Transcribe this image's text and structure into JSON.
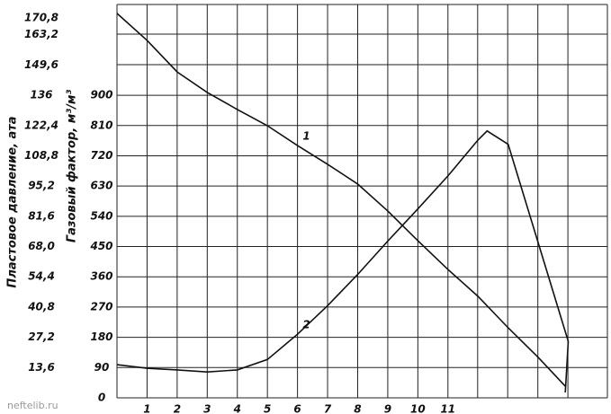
{
  "chart_data": {
    "type": "line",
    "ylabel": "Пластовое давление, ата",
    "y2label": "Газовый фактор, м³/м³",
    "watermark": "neftelib.ru",
    "xlim": [
      0,
      16.3
    ],
    "xticks": [
      1,
      2,
      3,
      4,
      5,
      6,
      7,
      8,
      9,
      10,
      11
    ],
    "ylim": [
      0,
      176.8
    ],
    "yticks": [
      {
        "value": 13.6,
        "label": "13,6"
      },
      {
        "value": 27.2,
        "label": "27,2"
      },
      {
        "value": 40.8,
        "label": "40,8"
      },
      {
        "value": 54.4,
        "label": "54,4"
      },
      {
        "value": 68,
        "label": "68,0"
      },
      {
        "value": 81.6,
        "label": "81,6"
      },
      {
        "value": 95.2,
        "label": "95,2"
      },
      {
        "value": 108.8,
        "label": "108,8"
      },
      {
        "value": 122.4,
        "label": "122,4"
      },
      136,
      {
        "value": 149.6,
        "label": "149,6"
      },
      {
        "value": 163.2,
        "label": "163,2"
      },
      {
        "value": 170.8,
        "label": "170,8"
      }
    ],
    "y2lim": [
      0,
      1170
    ],
    "y2ticks": [
      0,
      90,
      180,
      270,
      360,
      450,
      540,
      630,
      720,
      810,
      900
    ],
    "grid": true,
    "series": [
      {
        "name": "1",
        "color": "#111111",
        "x": [
          0,
          1,
          2,
          3,
          4,
          5,
          6,
          7,
          8,
          9,
          10,
          11,
          12,
          13,
          14,
          14.9
        ],
        "values": [
          172.8,
          160.7,
          146.5,
          137.3,
          129.6,
          122.3,
          113.4,
          105.0,
          96.1,
          84.0,
          70.6,
          57.7,
          45.6,
          31.5,
          18.2,
          5.2
        ]
      },
      {
        "name": "2",
        "color": "#111111",
        "axis": "y2",
        "x": [
          0,
          1,
          2,
          3,
          4,
          5,
          6,
          7,
          8,
          9,
          10,
          11,
          12,
          12.3,
          13,
          14,
          15,
          14.9
        ],
        "values": [
          98.5,
          88,
          83,
          77,
          83,
          114,
          189,
          274,
          367,
          466,
          562,
          660,
          767,
          794,
          754,
          461,
          168,
          16
        ]
      }
    ]
  }
}
